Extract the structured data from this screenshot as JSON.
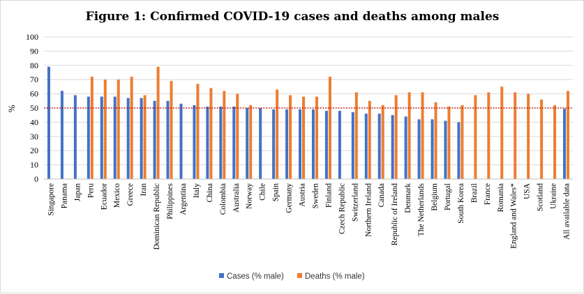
{
  "chart_data": {
    "type": "bar",
    "title": "Figure 1: Confirmed COVID-19 cases and deaths among males",
    "ylabel": "%",
    "xlabel": "",
    "ylim": [
      0,
      100
    ],
    "yticks": [
      0,
      10,
      20,
      30,
      40,
      50,
      60,
      70,
      80,
      90,
      100
    ],
    "grid": true,
    "legend_position": "bottom",
    "reference_line": {
      "value": 50,
      "style": "dotted",
      "color": "#c00000"
    },
    "categories": [
      "Singapore",
      "Panama",
      "Japan",
      "Peru",
      "Ecuador",
      "Mexico",
      "Greece",
      "Iran",
      "Dominican Republic",
      "Philippines",
      "Argentina",
      "Italy",
      "China",
      "Colombia",
      "Australia",
      "Norway",
      "Chile",
      "Spain",
      "Germany",
      "Austria",
      "Sweden",
      "Finland",
      "Czech Republic",
      "Switzerland",
      "Northern Ireland",
      "Canada",
      "Republic of Ireland",
      "Denmark",
      "The Netherlands",
      "Belgium",
      "Portugal",
      "South Korea",
      "Brazil",
      "France",
      "Romania",
      "England and Wales*",
      "USA",
      "Scotland",
      "Ukraine",
      "All available data"
    ],
    "series": [
      {
        "name": "Cases (% male)",
        "color": "#4472c4",
        "values": [
          79,
          62,
          59,
          58,
          58,
          58,
          57,
          57,
          55,
          55,
          53,
          52,
          51,
          51,
          51,
          50,
          50,
          49,
          49,
          49,
          49,
          48,
          48,
          47,
          46,
          46,
          45,
          44,
          42,
          42,
          41,
          40,
          null,
          null,
          null,
          null,
          null,
          null,
          null,
          49.5
        ]
      },
      {
        "name": "Deaths (% male)",
        "color": "#ed7d31",
        "values": [
          null,
          null,
          null,
          72,
          70,
          70,
          72,
          59,
          79,
          69,
          null,
          67,
          64,
          62,
          60,
          52,
          null,
          63,
          59,
          58,
          58,
          72,
          null,
          61,
          55,
          52,
          59,
          61,
          61,
          54,
          51,
          52,
          59,
          61,
          65,
          61,
          60,
          56,
          52,
          62
        ]
      }
    ]
  }
}
